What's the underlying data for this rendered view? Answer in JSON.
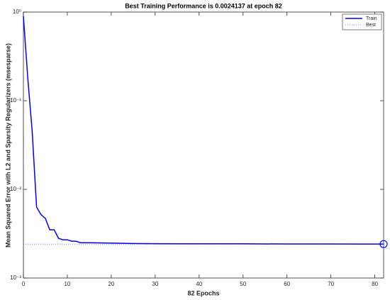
{
  "chart_data": {
    "type": "line",
    "title": "Best Training Performance is 0.0024137 at epoch 82",
    "x_label": "82 Epochs",
    "y_label": "Mean Squared Error with L2 and Sparsity Regularizers  (msesparse)",
    "log_y": true,
    "xlim": [
      0,
      82
    ],
    "xticks": [
      0,
      10,
      20,
      30,
      40,
      50,
      60,
      70,
      80
    ],
    "ylim": [
      0.001,
      1
    ],
    "yticks": [
      {
        "value": 0.001,
        "label": "10⁻³"
      },
      {
        "value": 0.01,
        "label": "10⁻²"
      },
      {
        "value": 0.1,
        "label": "10⁻¹"
      },
      {
        "value": 1,
        "label": "10⁰"
      }
    ],
    "legend_position": "top-right",
    "series": [
      {
        "name": "Train",
        "color": "#0000ff",
        "x": [
          0,
          1,
          2,
          3,
          4,
          5,
          6,
          7,
          8,
          9,
          10,
          11,
          12,
          13,
          14,
          15,
          20,
          25,
          30,
          40,
          50,
          60,
          70,
          82
        ],
        "values": [
          0.9,
          0.18,
          0.045,
          0.0063,
          0.0052,
          0.0047,
          0.0035,
          0.0035,
          0.0028,
          0.0027,
          0.0027,
          0.0026,
          0.0026,
          0.0025,
          0.0025,
          0.0025,
          0.00248,
          0.00245,
          0.00244,
          0.00243,
          0.00243,
          0.00242,
          0.00242,
          0.0024137
        ]
      }
    ],
    "best": {
      "name": "Best",
      "color": "#4f6fdf",
      "epoch": 82,
      "value": 0.0024137
    }
  }
}
